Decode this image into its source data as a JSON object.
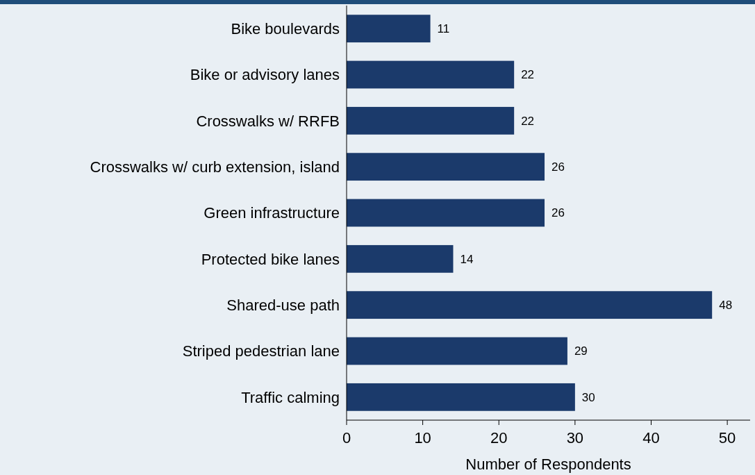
{
  "chart_data": {
    "type": "bar",
    "orientation": "horizontal",
    "xlabel": "Number of Respondents",
    "categories": [
      "Bike boulevards",
      "Bike or advisory lanes",
      "Crosswalks w/ RRFB",
      "Crosswalks w/ curb extension, island",
      "Green infrastructure",
      "Protected bike lanes",
      "Shared-use path",
      "Striped pedestrian lane",
      "Traffic calming"
    ],
    "values": [
      11,
      22,
      22,
      26,
      26,
      14,
      48,
      29,
      30
    ],
    "color": "#1b3a6b",
    "xlim": [
      0,
      53
    ],
    "xticks": [
      0,
      10,
      20,
      30,
      40,
      50
    ],
    "data_labels": true,
    "grid": false
  }
}
